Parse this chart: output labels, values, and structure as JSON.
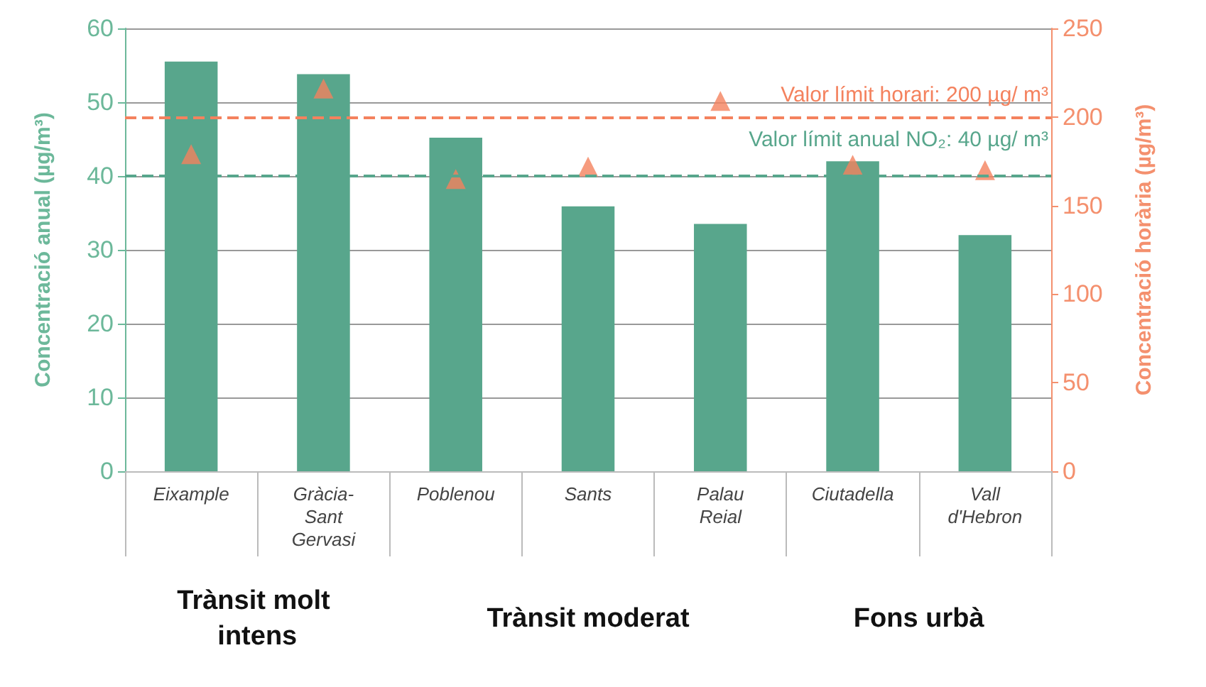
{
  "chart_data": {
    "type": "bar",
    "categories": [
      "Eixample",
      "Gràcia-Sant Gervasi",
      "Poblenou",
      "Sants",
      "Palau Reial",
      "Ciutadella",
      "Vall d'Hebron"
    ],
    "series": [
      {
        "color": "#58a68c",
        "values": [
          55.5,
          53.8,
          45.2,
          35.9,
          33.5,
          42.0,
          32.0
        ]
      },
      {
        "type": "scatter",
        "axis": "y2",
        "color": "#f4825e",
        "marker": "triangle",
        "values": [
          179,
          216,
          165,
          172,
          209,
          173,
          170
        ]
      }
    ],
    "ylabel": "Concentració anual (µg/m³)",
    "y2label": "Concentració horària (µg/m³)",
    "ylim": [
      0,
      60
    ],
    "yticks": [
      0,
      10,
      20,
      30,
      40,
      50,
      60
    ],
    "y2lim": [
      0,
      250
    ],
    "y2ticks": [
      0,
      50,
      100,
      150,
      200,
      250
    ],
    "ref_lines": [
      {
        "axis": "y2",
        "value": 200,
        "label": "Valor límit horari: 200 µg/ m³",
        "color": "#f4825e",
        "line_style": "dashed"
      },
      {
        "axis": "y",
        "value": 40,
        "label": "Valor límit anual NO₂: 40 µg/ m³",
        "color": "#58a68c",
        "line_style": "dashed"
      }
    ],
    "annotations": [
      "Trànsit molt intens",
      "Trànsit moderat",
      "Fons urbà"
    ],
    "grid": "y"
  }
}
